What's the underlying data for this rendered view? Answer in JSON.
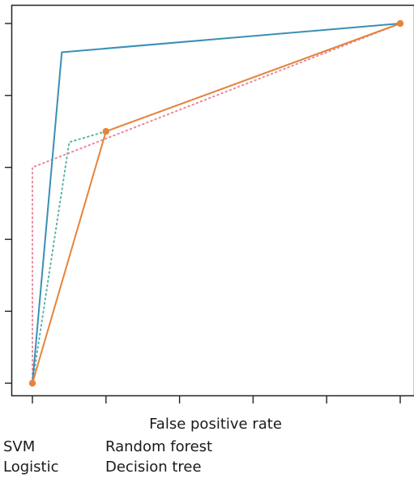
{
  "chart_data": {
    "type": "line",
    "title": "",
    "xlabel": "False positive rate",
    "ylabel": "",
    "xlim": [
      0,
      1
    ],
    "ylim": [
      0,
      1
    ],
    "xticks": [
      0,
      0.2,
      0.4,
      0.6,
      0.8,
      1.0
    ],
    "yticks": [
      0,
      0.2,
      0.4,
      0.6,
      0.8,
      1.0
    ],
    "tick_labels_visible": false,
    "grid": false,
    "legend_position": "bottom",
    "series": [
      {
        "name": "SVM",
        "color": "#3a8fb7",
        "style": "solid",
        "markers": false,
        "x": [
          0,
          0.08,
          1.0
        ],
        "y": [
          0,
          0.92,
          1.0
        ]
      },
      {
        "name": "Random forest",
        "color": "#e8833a",
        "style": "solid",
        "markers": true,
        "x": [
          0,
          0.2,
          1.0
        ],
        "y": [
          0,
          0.7,
          1.0
        ]
      },
      {
        "name": "Logistic",
        "color": "#5bb4a8",
        "style": "dotted",
        "markers": false,
        "x": [
          0,
          0.1,
          0.2,
          1.0
        ],
        "y": [
          0,
          0.67,
          0.7,
          1.0
        ]
      },
      {
        "name": "Decision tree",
        "color": "#e88a9a",
        "style": "dotted",
        "markers": false,
        "x": [
          0,
          0,
          1.0
        ],
        "y": [
          0,
          0.6,
          1.0
        ]
      }
    ]
  }
}
